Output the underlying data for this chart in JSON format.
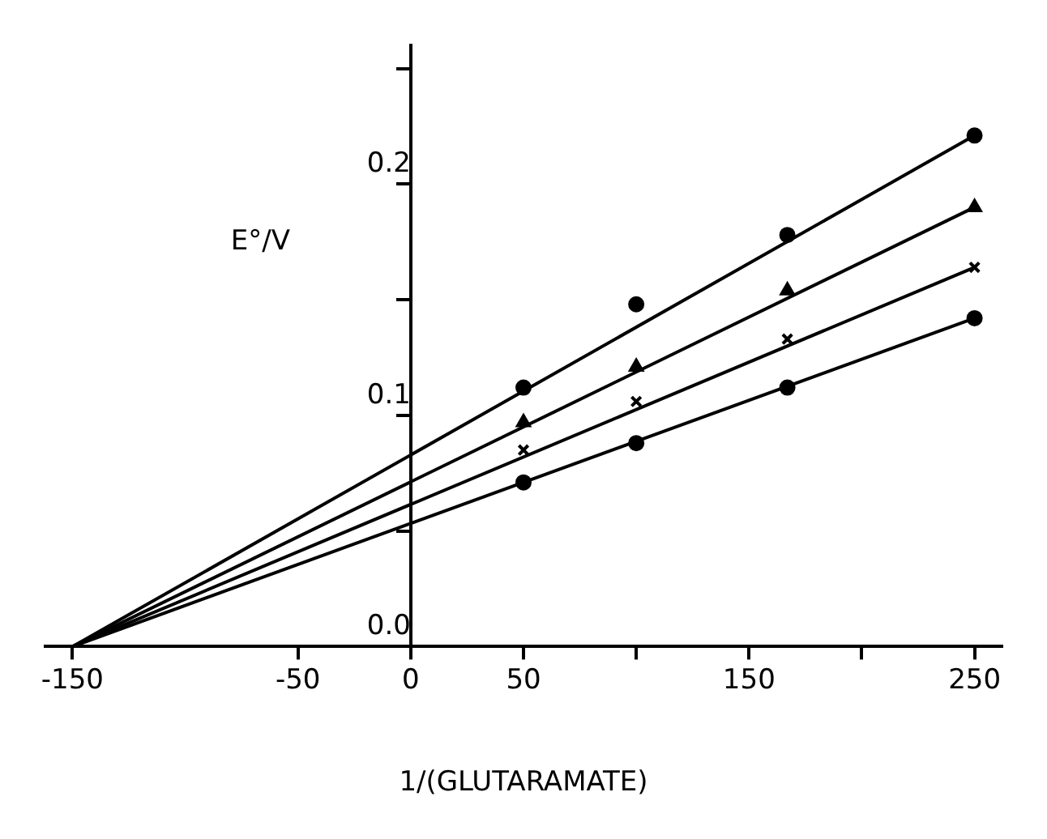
{
  "chart_data": {
    "type": "scatter",
    "xlabel": "1/(GLUTARAMATE)",
    "ylabel": "E°/V",
    "xlim": [
      -162,
      262
    ],
    "ylim": [
      0,
      0.26
    ],
    "xticks": [
      -150,
      -50,
      0,
      50,
      {
        "value": 100,
        "label": null
      },
      150,
      {
        "value": 200,
        "label": null
      },
      250
    ],
    "yticks": [
      {
        "value": 0,
        "label": "0.0"
      },
      {
        "value": 0.05,
        "label": null
      },
      0.1,
      {
        "value": 0.15,
        "label": null
      },
      0.2,
      {
        "value": 0.25,
        "label": null
      }
    ],
    "grid": false,
    "legend": false,
    "series": [
      {
        "type": "scatter",
        "marker": "circle",
        "color": "#000000",
        "x": [
          50,
          100,
          167,
          250
        ],
        "values": [
          0.112,
          0.148,
          0.178,
          0.221
        ]
      },
      {
        "type": "scatter",
        "marker": "triangle",
        "color": "#000000",
        "x": [
          50,
          100,
          167,
          250
        ],
        "values": [
          0.097,
          0.121,
          0.154,
          0.19
        ]
      },
      {
        "type": "scatter",
        "marker": "cross",
        "color": "#000000",
        "x": [
          50,
          100,
          167,
          250
        ],
        "values": [
          0.085,
          0.106,
          0.133,
          0.164
        ]
      },
      {
        "type": "scatter",
        "marker": "circle",
        "color": "#000000",
        "x": [
          50,
          100,
          167,
          250
        ],
        "values": [
          0.071,
          0.088,
          0.112,
          0.142
        ]
      },
      {
        "type": "line",
        "color": "#000000",
        "x": [
          -150,
          250
        ],
        "values": [
          0,
          0.221
        ]
      },
      {
        "type": "line",
        "color": "#000000",
        "x": [
          -150,
          250
        ],
        "values": [
          0,
          0.19
        ]
      },
      {
        "type": "line",
        "color": "#000000",
        "x": [
          -150,
          250
        ],
        "values": [
          0,
          0.164
        ]
      },
      {
        "type": "line",
        "color": "#000000",
        "x": [
          -150,
          250
        ],
        "values": [
          0,
          0.142
        ]
      }
    ]
  }
}
